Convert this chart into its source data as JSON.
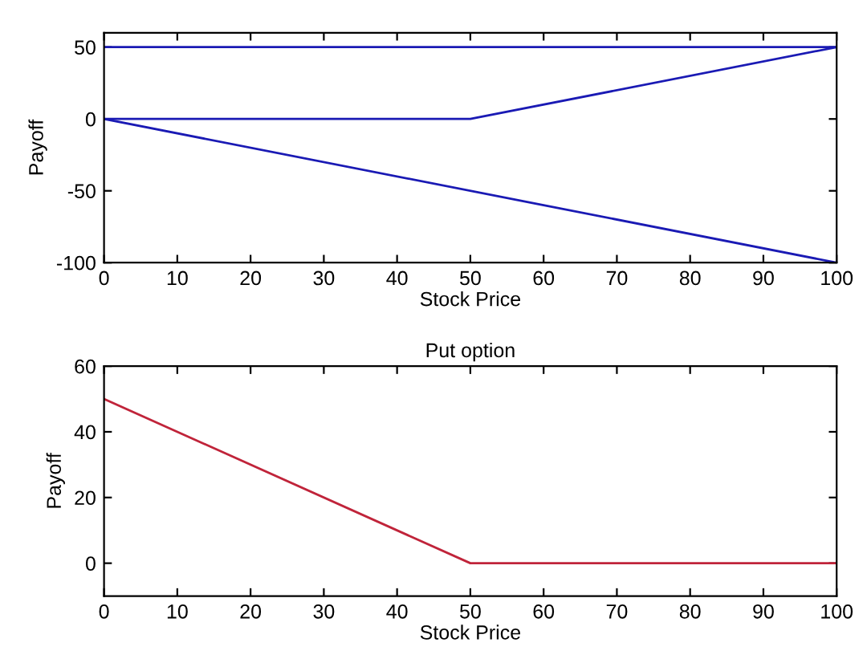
{
  "chart_data": [
    {
      "type": "line",
      "xlabel": "Stock Price",
      "ylabel": "Payoff",
      "xlim": [
        0,
        100
      ],
      "ylim": [
        -100,
        60
      ],
      "xticks": [
        0,
        10,
        20,
        30,
        40,
        50,
        60,
        70,
        80,
        90,
        100
      ],
      "yticks": [
        -100,
        -50,
        0,
        50
      ],
      "grid": false,
      "series": [
        {
          "color": "#1a1ab4",
          "x": [
            0,
            100
          ],
          "values": [
            50,
            50
          ]
        },
        {
          "color": "#1a1ab4",
          "x": [
            0,
            50,
            100
          ],
          "values": [
            0,
            0,
            50
          ]
        },
        {
          "color": "#1a1ab4",
          "x": [
            0,
            100
          ],
          "values": [
            0,
            -100
          ]
        }
      ]
    },
    {
      "type": "line",
      "title": "Put option",
      "xlabel": "Stock Price",
      "ylabel": "Payoff",
      "xlim": [
        0,
        100
      ],
      "ylim": [
        -10,
        60
      ],
      "xticks": [
        0,
        10,
        20,
        30,
        40,
        50,
        60,
        70,
        80,
        90,
        100
      ],
      "yticks": [
        0,
        20,
        40,
        60
      ],
      "grid": false,
      "series": [
        {
          "color": "#c0243a",
          "x": [
            0,
            50,
            100
          ],
          "values": [
            50,
            0,
            0
          ]
        }
      ]
    }
  ]
}
